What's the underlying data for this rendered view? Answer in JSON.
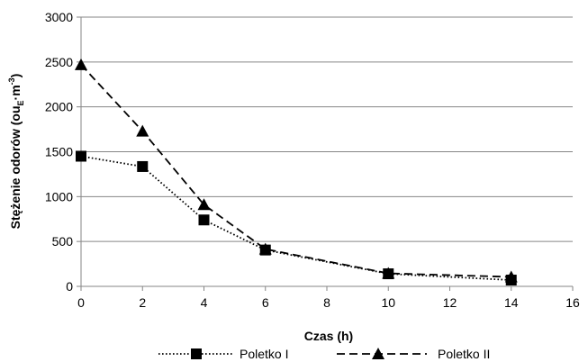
{
  "chart_data": {
    "type": "line",
    "xlabel": "Czas (h)",
    "ylabel": {
      "prefix": "Stężenie odorów (ou",
      "sub": "E",
      "mid": "·m",
      "sup": "-3",
      "suffix": ")"
    },
    "xlim": [
      0,
      16
    ],
    "ylim": [
      0,
      3000
    ],
    "xticks": [
      0,
      2,
      4,
      6,
      8,
      10,
      12,
      14,
      16
    ],
    "yticks": [
      0,
      500,
      1000,
      1500,
      2000,
      2500,
      3000
    ],
    "grid": "horizontal",
    "legend_position": "bottom",
    "series": [
      {
        "name": "Poletko I",
        "marker": "square",
        "line_style": "dotted",
        "color": "#000000",
        "x": [
          0,
          2,
          4,
          6,
          10,
          14
        ],
        "y": [
          1450,
          1335,
          740,
          405,
          140,
          70
        ]
      },
      {
        "name": "Poletko II",
        "marker": "triangle",
        "line_style": "dashed",
        "color": "#000000",
        "x": [
          0,
          2,
          4,
          6,
          10,
          14
        ],
        "y": [
          2470,
          1730,
          910,
          415,
          145,
          105
        ]
      }
    ]
  }
}
